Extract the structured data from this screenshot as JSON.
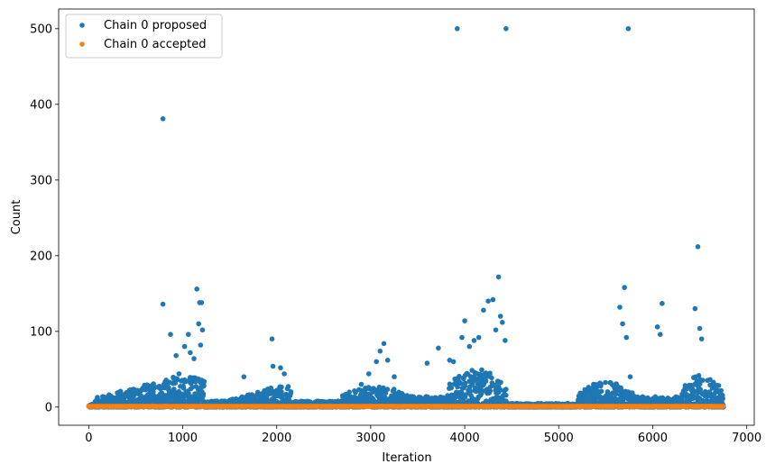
{
  "chart_data": {
    "type": "scatter",
    "xlabel": "Iteration",
    "ylabel": "Count",
    "xlim": [
      -320,
      7080
    ],
    "ylim": [
      -24,
      526
    ],
    "xticks": [
      0,
      1000,
      2000,
      3000,
      4000,
      5000,
      6000,
      7000
    ],
    "yticks": [
      0,
      100,
      200,
      300,
      400,
      500
    ],
    "legend_position": "top-left",
    "series": [
      {
        "name": "Chain 0 proposed",
        "color": "#1f77b4",
        "points": [
          [
            790,
            381
          ],
          [
            790,
            136
          ],
          [
            870,
            96
          ],
          [
            930,
            68
          ],
          [
            960,
            44
          ],
          [
            1020,
            80
          ],
          [
            1060,
            96
          ],
          [
            1080,
            72
          ],
          [
            1120,
            64
          ],
          [
            1150,
            156
          ],
          [
            1170,
            110
          ],
          [
            1180,
            138
          ],
          [
            1190,
            82
          ],
          [
            1200,
            138
          ],
          [
            1210,
            102
          ],
          [
            1650,
            40
          ],
          [
            1950,
            90
          ],
          [
            1960,
            54
          ],
          [
            2040,
            52
          ],
          [
            2080,
            44
          ],
          [
            2900,
            30
          ],
          [
            2980,
            44
          ],
          [
            3060,
            60
          ],
          [
            3100,
            74
          ],
          [
            3140,
            84
          ],
          [
            3180,
            62
          ],
          [
            3250,
            40
          ],
          [
            3600,
            58
          ],
          [
            3720,
            78
          ],
          [
            3840,
            62
          ],
          [
            3880,
            60
          ],
          [
            3920,
            500
          ],
          [
            3970,
            92
          ],
          [
            4000,
            114
          ],
          [
            4050,
            80
          ],
          [
            4100,
            88
          ],
          [
            4150,
            92
          ],
          [
            4200,
            128
          ],
          [
            4250,
            140
          ],
          [
            4300,
            142
          ],
          [
            4330,
            102
          ],
          [
            4360,
            172
          ],
          [
            4380,
            120
          ],
          [
            4400,
            112
          ],
          [
            4430,
            88
          ],
          [
            4440,
            500
          ],
          [
            5650,
            132
          ],
          [
            5680,
            110
          ],
          [
            5700,
            158
          ],
          [
            5720,
            92
          ],
          [
            5740,
            500
          ],
          [
            5760,
            40
          ],
          [
            6050,
            106
          ],
          [
            6080,
            96
          ],
          [
            6100,
            137
          ],
          [
            6450,
            130
          ],
          [
            6480,
            212
          ],
          [
            6500,
            104
          ],
          [
            6520,
            90
          ]
        ]
      },
      {
        "name": "Chain 0 accepted",
        "color": "#ff7f0e",
        "points": [
          [
            0,
            1
          ],
          [
            6750,
            1
          ]
        ]
      }
    ]
  }
}
